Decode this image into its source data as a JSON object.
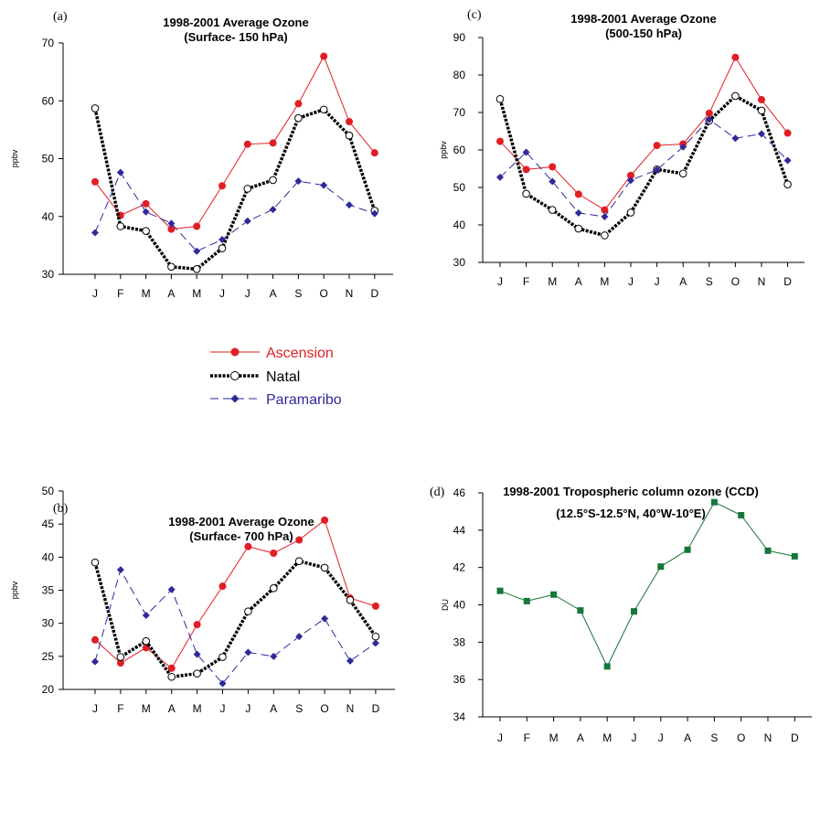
{
  "legend": {
    "entries": [
      {
        "label": "Ascension",
        "color": "#e01e25"
      },
      {
        "label": "Natal",
        "color": "#000000"
      },
      {
        "label": "Paramaribo",
        "color": "#2f2a9a"
      }
    ]
  },
  "chart_data": [
    {
      "id": "a",
      "panel_label": "(a)",
      "type": "line",
      "title": "1998-2001 Average Ozone",
      "subtitle": "(Surface- 150 hPa)",
      "ylabel": "ppbv",
      "ylim": [
        30,
        70
      ],
      "yticks": [
        "30",
        "40",
        "50",
        "60",
        "70"
      ],
      "categories": [
        "J",
        "F",
        "M",
        "A",
        "M",
        "J",
        "J",
        "A",
        "S",
        "O",
        "N",
        "D"
      ],
      "series": [
        {
          "name": "Ascension",
          "values": [
            46.0,
            40.2,
            42.2,
            37.8,
            38.3,
            45.3,
            52.5,
            52.7,
            59.5,
            67.7,
            56.4,
            51.0
          ]
        },
        {
          "name": "Natal",
          "values": [
            58.7,
            38.3,
            37.5,
            31.3,
            30.9,
            34.5,
            44.8,
            46.3,
            57.0,
            58.5,
            54.0,
            41.0
          ]
        },
        {
          "name": "Paramaribo",
          "values": [
            37.2,
            47.6,
            40.8,
            38.8,
            34.0,
            36.0,
            39.2,
            41.2,
            46.1,
            45.4,
            42.0,
            40.5
          ]
        }
      ]
    },
    {
      "id": "b",
      "panel_label": "(b)",
      "type": "line",
      "title": "1998-2001 Average Ozone",
      "subtitle": "(Surface- 700 hPa)",
      "ylabel": "ppbv",
      "ylim": [
        20,
        50
      ],
      "yticks": [
        "20",
        "25",
        "30",
        "35",
        "40",
        "45",
        "50"
      ],
      "categories": [
        "J",
        "F",
        "M",
        "A",
        "M",
        "J",
        "J",
        "A",
        "S",
        "O",
        "N",
        "D"
      ],
      "series": [
        {
          "name": "Ascension",
          "values": [
            27.5,
            24.0,
            26.3,
            23.2,
            29.8,
            35.6,
            41.6,
            40.6,
            42.6,
            45.6,
            33.8,
            32.6
          ]
        },
        {
          "name": "Natal",
          "values": [
            39.2,
            24.9,
            27.3,
            21.9,
            22.4,
            24.9,
            31.8,
            35.3,
            39.4,
            38.4,
            33.5,
            28.0
          ]
        },
        {
          "name": "Paramaribo",
          "values": [
            24.2,
            38.1,
            31.2,
            35.1,
            25.3,
            20.9,
            25.6,
            25.0,
            28.0,
            30.7,
            24.3,
            27.0
          ]
        }
      ]
    },
    {
      "id": "c",
      "panel_label": "(c)",
      "type": "line",
      "title": "1998-2001 Average Ozone",
      "subtitle": "(500-150 hPa)",
      "ylabel": "ppbv",
      "ylim": [
        30,
        90
      ],
      "yticks": [
        "30",
        "40",
        "50",
        "60",
        "70",
        "80",
        "90"
      ],
      "categories": [
        "J",
        "F",
        "M",
        "A",
        "M",
        "J",
        "J",
        "A",
        "S",
        "O",
        "N",
        "D"
      ],
      "series": [
        {
          "name": "Ascension",
          "values": [
            62.3,
            54.8,
            55.5,
            48.2,
            44.0,
            53.2,
            61.2,
            61.6,
            69.8,
            84.7,
            73.4,
            64.5
          ]
        },
        {
          "name": "Natal",
          "values": [
            73.6,
            48.3,
            44.0,
            39.0,
            37.2,
            43.3,
            54.8,
            53.7,
            67.8,
            74.4,
            70.5,
            50.8
          ]
        },
        {
          "name": "Paramaribo",
          "values": [
            52.7,
            59.4,
            51.6,
            43.2,
            42.2,
            51.9,
            54.7,
            60.8,
            68.1,
            63.1,
            64.3,
            57.2
          ]
        }
      ]
    },
    {
      "id": "d",
      "panel_label": "(d)",
      "type": "line",
      "title": "1998-2001 Tropospheric column ozone (CCD)",
      "subtitle": "(12.5°S-12.5°N, 40°W-10°E)",
      "ylabel": "DU",
      "ylim": [
        34,
        46
      ],
      "yticks": [
        "34",
        "36",
        "38",
        "40",
        "42",
        "44",
        "46"
      ],
      "categories": [
        "J",
        "F",
        "M",
        "A",
        "M",
        "J",
        "J",
        "A",
        "S",
        "O",
        "N",
        "D"
      ],
      "series": [
        {
          "values": [
            40.75,
            40.2,
            40.55,
            39.7,
            36.7,
            39.65,
            42.05,
            42.95,
            45.5,
            44.8,
            42.9,
            42.6
          ],
          "color": "#15773a"
        }
      ]
    }
  ]
}
